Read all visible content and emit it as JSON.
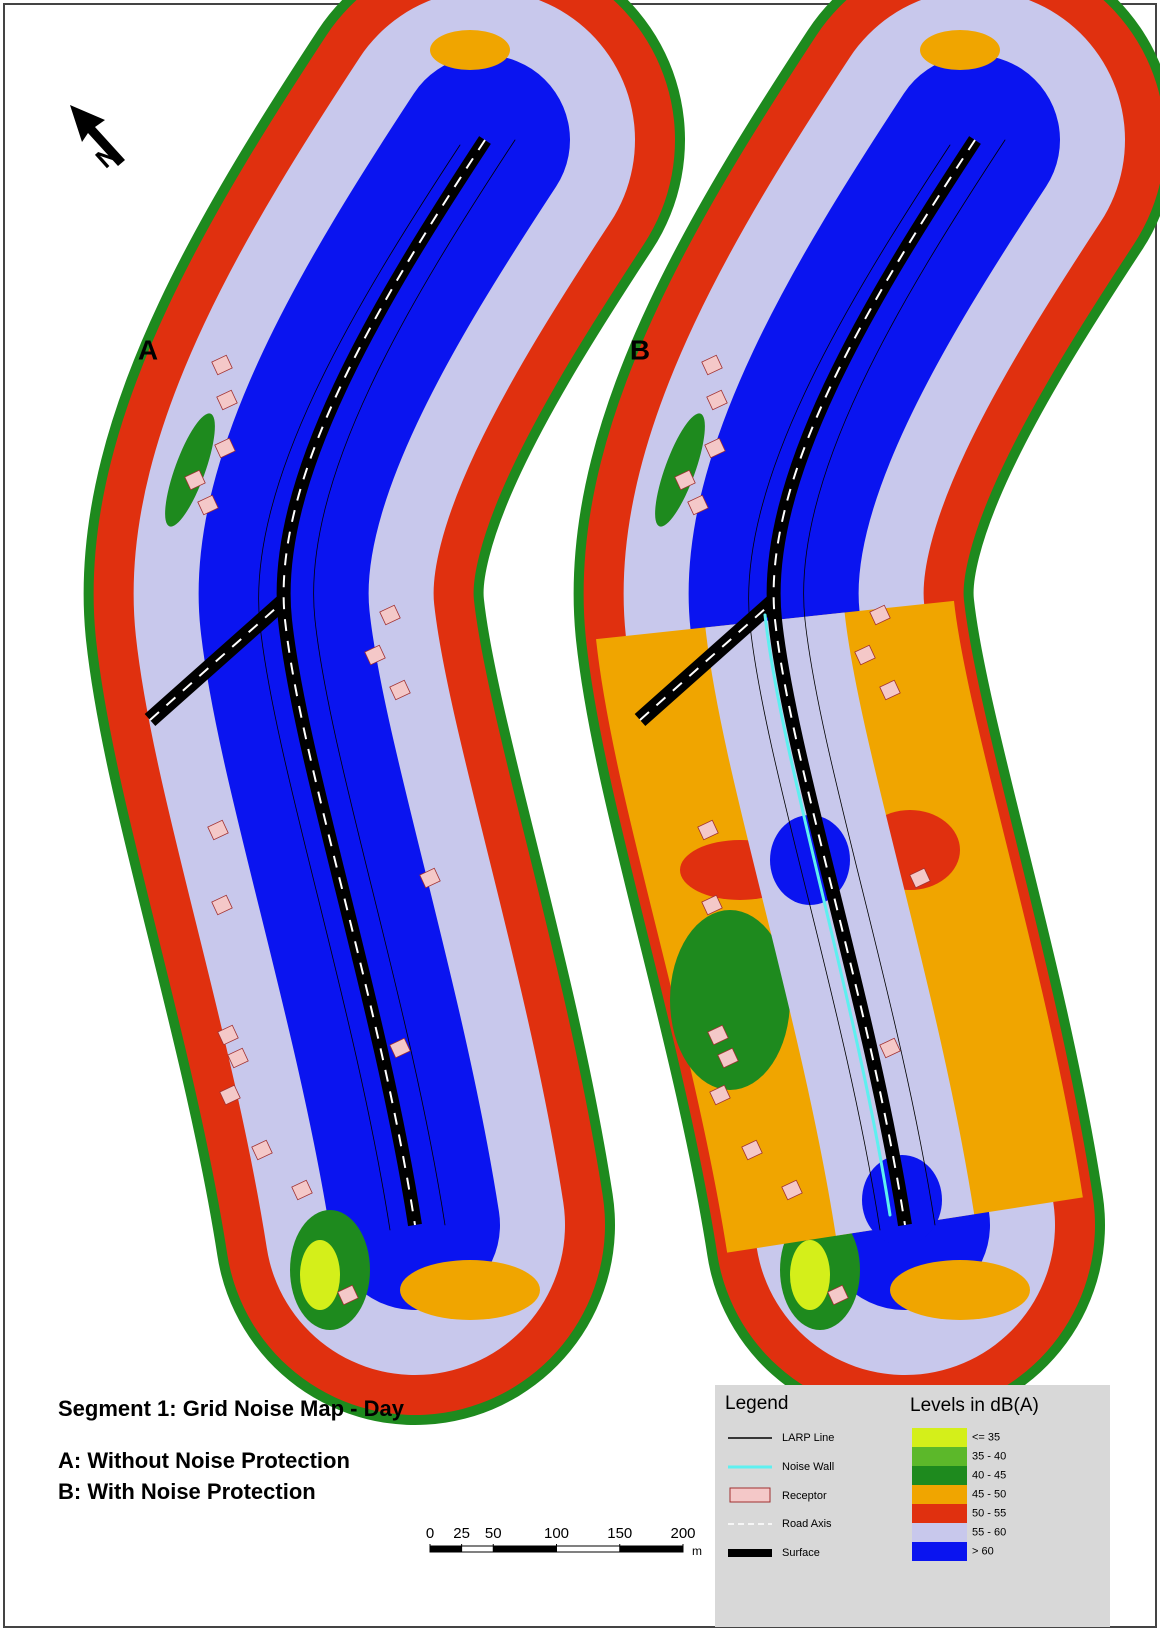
{
  "title": "Segment 1: Grid Noise Map - Day",
  "north": "N",
  "panels": [
    {
      "label": "A",
      "caption": "A: Without Noise Protection"
    },
    {
      "label": "B",
      "caption": "B: With Noise Protection"
    }
  ],
  "scale": {
    "ticks": [
      0,
      25,
      50,
      100,
      150,
      200
    ],
    "unit": "m"
  },
  "legend": {
    "title": "Legend",
    "items": [
      "LARP Line",
      "Noise Wall",
      "Receptor",
      "Road Axis",
      "Surface"
    ]
  },
  "levels": {
    "title": "Levels in dB(A)",
    "classes": [
      {
        "label": "<= 35",
        "color": "#d4ef1a"
      },
      {
        "label": "35 - 40",
        "color": "#5cb82a"
      },
      {
        "label": "40 - 45",
        "color": "#1e8a1e"
      },
      {
        "label": "45 - 50",
        "color": "#f0a500"
      },
      {
        "label": "50 - 55",
        "color": "#e0300f"
      },
      {
        "label": "55 - 60",
        "color": "#c8c8ec"
      },
      {
        "label": "> 60",
        "color": "#0a14f0"
      }
    ]
  }
}
